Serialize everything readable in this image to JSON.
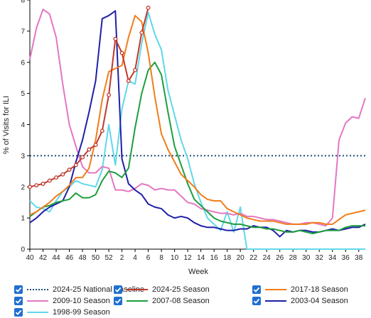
{
  "chart_data": {
    "type": "line",
    "xlabel": "Week",
    "ylabel": "% of Visits for ILI",
    "ylim": [
      0,
      8
    ],
    "yticks": [
      "0",
      "1",
      "2",
      "3",
      "4",
      "5",
      "6",
      "7",
      "8"
    ],
    "xticks": [
      "40",
      "42",
      "44",
      "46",
      "48",
      "50",
      "52",
      "2",
      "4",
      "6",
      "8",
      "10",
      "12",
      "14",
      "16",
      "18",
      "20",
      "22",
      "24",
      "26",
      "28",
      "30",
      "32",
      "34",
      "36",
      "38"
    ],
    "baseline": {
      "name": "2024-25 National Baseline",
      "value": 3.0,
      "color": "#1f4e79"
    },
    "series": [
      {
        "name": "2024-25 Season",
        "color": "#c0392b",
        "markers": true,
        "values": [
          2.0,
          2.05,
          2.1,
          2.2,
          2.3,
          2.4,
          2.55,
          2.7,
          2.95,
          3.2,
          3.35,
          3.8,
          4.95,
          6.75,
          6.3,
          5.4,
          5.75,
          6.95,
          7.75
        ]
      },
      {
        "name": "2017-18 Season",
        "color": "#f07d1a",
        "values": [
          1.1,
          1.2,
          1.35,
          1.5,
          1.7,
          1.85,
          2.05,
          2.3,
          2.3,
          2.6,
          3.5,
          4.8,
          5.7,
          5.8,
          5.9,
          6.8,
          7.5,
          7.3,
          6.3,
          4.9,
          3.7,
          3.2,
          2.8,
          2.4,
          2.2,
          2.0,
          1.75,
          1.6,
          1.55,
          1.55,
          1.3,
          1.2,
          1.1,
          1.0,
          0.95,
          0.9,
          0.9,
          0.9,
          0.85,
          0.8,
          0.8,
          0.8,
          0.8,
          0.85,
          0.85,
          0.8,
          0.8,
          0.95,
          1.1,
          1.15,
          1.2,
          1.25
        ]
      },
      {
        "name": "2009-10 Season",
        "color": "#e377c2",
        "values": [
          6.1,
          7.1,
          7.7,
          7.55,
          6.8,
          5.3,
          4.0,
          3.3,
          2.65,
          2.45,
          2.45,
          2.65,
          2.6,
          1.9,
          1.9,
          1.85,
          1.95,
          2.1,
          2.05,
          1.9,
          1.95,
          1.9,
          1.9,
          1.7,
          1.5,
          1.45,
          1.3,
          1.25,
          1.2,
          1.15,
          1.15,
          1.1,
          1.15,
          1.05,
          1.05,
          1.0,
          0.95,
          0.95,
          0.9,
          0.85,
          0.8,
          0.8,
          0.85,
          0.85,
          0.8,
          0.75,
          1.0,
          3.5,
          4.05,
          4.25,
          4.2,
          4.85
        ]
      },
      {
        "name": "2007-08 Season",
        "color": "#1e9e3e",
        "values": [
          1.05,
          1.2,
          1.35,
          1.4,
          1.5,
          1.55,
          1.6,
          1.8,
          1.65,
          1.65,
          1.75,
          2.2,
          2.5,
          2.45,
          2.3,
          2.6,
          3.9,
          5.0,
          5.75,
          6.0,
          5.6,
          4.4,
          3.3,
          2.7,
          2.1,
          1.6,
          1.4,
          1.2,
          1.0,
          0.9,
          0.85,
          0.8,
          0.8,
          0.75,
          0.7,
          0.7,
          0.65,
          0.65,
          0.6,
          0.55,
          0.55,
          0.6,
          0.55,
          0.5,
          0.55,
          0.6,
          0.6,
          0.6,
          0.7,
          0.75,
          0.75,
          0.75
        ]
      },
      {
        "name": "2003-04 Season",
        "color": "#1f1fa8",
        "values": [
          0.85,
          1.0,
          1.2,
          1.35,
          1.45,
          1.55,
          2.0,
          2.8,
          3.5,
          4.4,
          5.4,
          7.4,
          7.5,
          7.65,
          2.9,
          2.1,
          1.9,
          1.75,
          1.45,
          1.35,
          1.3,
          1.1,
          1.0,
          1.05,
          1.0,
          0.85,
          0.75,
          0.7,
          0.7,
          0.65,
          0.6,
          0.6,
          0.65,
          0.65,
          0.75,
          0.7,
          0.7,
          0.6,
          0.4,
          0.6,
          0.55,
          0.6,
          0.6,
          0.55,
          0.55,
          0.6,
          0.65,
          0.6,
          0.65,
          0.7,
          0.7,
          0.8
        ]
      },
      {
        "name": "1998-99 Season",
        "color": "#5fd8ea",
        "values": [
          1.55,
          1.35,
          1.3,
          1.2,
          1.55,
          1.85,
          2.0,
          2.2,
          2.1,
          2.05,
          2.0,
          2.55,
          4.0,
          2.7,
          4.5,
          5.4,
          5.3,
          6.6,
          7.6,
          6.9,
          6.4,
          5.1,
          4.3,
          3.5,
          2.9,
          2.1,
          1.5,
          1.0,
          0.8,
          0.6,
          1.2,
          0.55,
          1.35,
          0.0,
          0.0,
          0.0,
          0.0,
          0.0,
          0.0,
          0.0,
          0.0,
          0.0,
          0.0,
          0.0,
          0.0,
          0.0,
          0.0,
          0.0,
          0.0,
          0.0,
          0.0,
          0.0
        ]
      }
    ]
  },
  "legend": {
    "items": [
      {
        "label": "2024-25 National Baseline",
        "color": "#1f4e79",
        "dash": true
      },
      {
        "label": "2024-25 Season",
        "color": "#c0392b",
        "dash": false
      },
      {
        "label": "2017-18 Season",
        "color": "#f07d1a",
        "dash": false
      },
      {
        "label": "2009-10 Season",
        "color": "#e377c2",
        "dash": false
      },
      {
        "label": "2007-08 Season",
        "color": "#1e9e3e",
        "dash": false
      },
      {
        "label": "2003-04 Season",
        "color": "#1f1fa8",
        "dash": false
      },
      {
        "label": "1998-99 Season",
        "color": "#5fd8ea",
        "dash": false
      }
    ]
  }
}
